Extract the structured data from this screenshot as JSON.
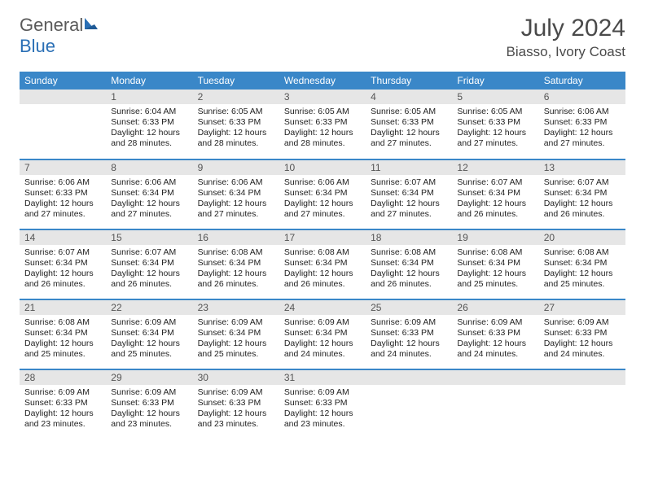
{
  "logo": {
    "text1": "General",
    "text2": "Blue"
  },
  "title": "July 2024",
  "location": "Biasso, Ivory Coast",
  "header_color": "#3a87c8",
  "daynum_bg": "#e6e6e6",
  "border_color": "#3a87c8",
  "text_color": "#222222",
  "days_of_week": [
    "Sunday",
    "Monday",
    "Tuesday",
    "Wednesday",
    "Thursday",
    "Friday",
    "Saturday"
  ],
  "weeks": [
    [
      null,
      {
        "n": "1",
        "sr": "6:04 AM",
        "ss": "6:33 PM",
        "dl": "12 hours and 28 minutes."
      },
      {
        "n": "2",
        "sr": "6:05 AM",
        "ss": "6:33 PM",
        "dl": "12 hours and 28 minutes."
      },
      {
        "n": "3",
        "sr": "6:05 AM",
        "ss": "6:33 PM",
        "dl": "12 hours and 28 minutes."
      },
      {
        "n": "4",
        "sr": "6:05 AM",
        "ss": "6:33 PM",
        "dl": "12 hours and 27 minutes."
      },
      {
        "n": "5",
        "sr": "6:05 AM",
        "ss": "6:33 PM",
        "dl": "12 hours and 27 minutes."
      },
      {
        "n": "6",
        "sr": "6:06 AM",
        "ss": "6:33 PM",
        "dl": "12 hours and 27 minutes."
      }
    ],
    [
      {
        "n": "7",
        "sr": "6:06 AM",
        "ss": "6:33 PM",
        "dl": "12 hours and 27 minutes."
      },
      {
        "n": "8",
        "sr": "6:06 AM",
        "ss": "6:34 PM",
        "dl": "12 hours and 27 minutes."
      },
      {
        "n": "9",
        "sr": "6:06 AM",
        "ss": "6:34 PM",
        "dl": "12 hours and 27 minutes."
      },
      {
        "n": "10",
        "sr": "6:06 AM",
        "ss": "6:34 PM",
        "dl": "12 hours and 27 minutes."
      },
      {
        "n": "11",
        "sr": "6:07 AM",
        "ss": "6:34 PM",
        "dl": "12 hours and 27 minutes."
      },
      {
        "n": "12",
        "sr": "6:07 AM",
        "ss": "6:34 PM",
        "dl": "12 hours and 26 minutes."
      },
      {
        "n": "13",
        "sr": "6:07 AM",
        "ss": "6:34 PM",
        "dl": "12 hours and 26 minutes."
      }
    ],
    [
      {
        "n": "14",
        "sr": "6:07 AM",
        "ss": "6:34 PM",
        "dl": "12 hours and 26 minutes."
      },
      {
        "n": "15",
        "sr": "6:07 AM",
        "ss": "6:34 PM",
        "dl": "12 hours and 26 minutes."
      },
      {
        "n": "16",
        "sr": "6:08 AM",
        "ss": "6:34 PM",
        "dl": "12 hours and 26 minutes."
      },
      {
        "n": "17",
        "sr": "6:08 AM",
        "ss": "6:34 PM",
        "dl": "12 hours and 26 minutes."
      },
      {
        "n": "18",
        "sr": "6:08 AM",
        "ss": "6:34 PM",
        "dl": "12 hours and 26 minutes."
      },
      {
        "n": "19",
        "sr": "6:08 AM",
        "ss": "6:34 PM",
        "dl": "12 hours and 25 minutes."
      },
      {
        "n": "20",
        "sr": "6:08 AM",
        "ss": "6:34 PM",
        "dl": "12 hours and 25 minutes."
      }
    ],
    [
      {
        "n": "21",
        "sr": "6:08 AM",
        "ss": "6:34 PM",
        "dl": "12 hours and 25 minutes."
      },
      {
        "n": "22",
        "sr": "6:09 AM",
        "ss": "6:34 PM",
        "dl": "12 hours and 25 minutes."
      },
      {
        "n": "23",
        "sr": "6:09 AM",
        "ss": "6:34 PM",
        "dl": "12 hours and 25 minutes."
      },
      {
        "n": "24",
        "sr": "6:09 AM",
        "ss": "6:34 PM",
        "dl": "12 hours and 24 minutes."
      },
      {
        "n": "25",
        "sr": "6:09 AM",
        "ss": "6:33 PM",
        "dl": "12 hours and 24 minutes."
      },
      {
        "n": "26",
        "sr": "6:09 AM",
        "ss": "6:33 PM",
        "dl": "12 hours and 24 minutes."
      },
      {
        "n": "27",
        "sr": "6:09 AM",
        "ss": "6:33 PM",
        "dl": "12 hours and 24 minutes."
      }
    ],
    [
      {
        "n": "28",
        "sr": "6:09 AM",
        "ss": "6:33 PM",
        "dl": "12 hours and 23 minutes."
      },
      {
        "n": "29",
        "sr": "6:09 AM",
        "ss": "6:33 PM",
        "dl": "12 hours and 23 minutes."
      },
      {
        "n": "30",
        "sr": "6:09 AM",
        "ss": "6:33 PM",
        "dl": "12 hours and 23 minutes."
      },
      {
        "n": "31",
        "sr": "6:09 AM",
        "ss": "6:33 PM",
        "dl": "12 hours and 23 minutes."
      },
      null,
      null,
      null
    ]
  ],
  "labels": {
    "sunrise": "Sunrise:",
    "sunset": "Sunset:",
    "daylight": "Daylight:"
  }
}
